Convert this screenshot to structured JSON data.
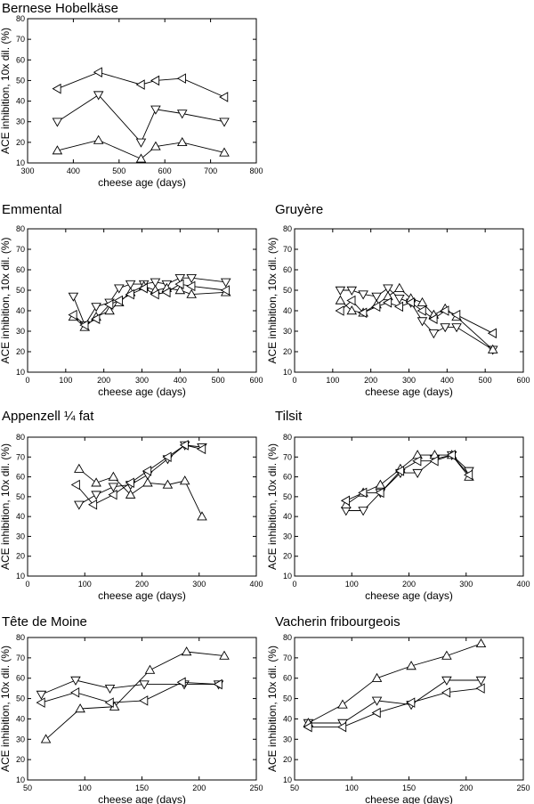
{
  "chart_data": [
    {
      "type": "scatter",
      "title": "Bernese Hobelkäse",
      "xlabel": "cheese age (days)",
      "ylabel": "ACE inhibition, 10x dil. (%)",
      "xlim": [
        300,
        800
      ],
      "ylim": [
        10,
        80
      ],
      "xticks": [
        300,
        400,
        500,
        600,
        700,
        800
      ],
      "yticks": [
        10,
        20,
        30,
        40,
        50,
        60,
        70,
        80
      ],
      "series": [
        {
          "marker": "triangle-left",
          "x": [
            365,
            455,
            548,
            580,
            638,
            730
          ],
          "y": [
            46,
            54,
            48,
            50,
            51,
            42
          ]
        },
        {
          "marker": "triangle-down",
          "x": [
            365,
            455,
            548,
            580,
            638,
            730
          ],
          "y": [
            30,
            43,
            20,
            36,
            34,
            30
          ]
        },
        {
          "marker": "triangle-up",
          "x": [
            365,
            455,
            548,
            580,
            638,
            730
          ],
          "y": [
            16,
            21,
            12,
            18,
            20,
            15
          ]
        }
      ]
    },
    {
      "type": "scatter",
      "title": "Emmental",
      "xlabel": "cheese age (days)",
      "ylabel": "ACE inhibition, 10x dil. (%)",
      "xlim": [
        0,
        600
      ],
      "ylim": [
        10,
        80
      ],
      "xticks": [
        0,
        100,
        200,
        300,
        400,
        500,
        600
      ],
      "yticks": [
        10,
        20,
        30,
        40,
        50,
        60,
        70,
        80
      ],
      "series": [
        {
          "marker": "triangle-down",
          "x": [
            120,
            150,
            180,
            215,
            240,
            270,
            305,
            335,
            365,
            400,
            430,
            520
          ],
          "y": [
            47,
            33,
            42,
            44,
            51,
            53,
            53,
            54,
            53,
            56,
            56,
            54
          ]
        },
        {
          "marker": "triangle-up",
          "x": [
            120,
            150,
            180,
            215,
            240,
            270,
            305,
            335,
            365,
            400,
            430,
            520
          ],
          "y": [
            37,
            32,
            37,
            40,
            44,
            49,
            52,
            50,
            51,
            50,
            48,
            49
          ]
        },
        {
          "marker": "triangle-left",
          "x": [
            120,
            150,
            180,
            215,
            240,
            270,
            305,
            335,
            365,
            400,
            430,
            520
          ],
          "y": [
            38,
            33,
            36,
            43,
            45,
            48,
            51,
            48,
            49,
            53,
            52,
            50
          ]
        }
      ]
    },
    {
      "type": "scatter",
      "title": "Gruyère",
      "xlabel": "cheese age (days)",
      "ylabel": "ACE inhibition, 10x dil. (%)",
      "xlim": [
        0,
        600
      ],
      "ylim": [
        10,
        80
      ],
      "xticks": [
        0,
        100,
        200,
        300,
        400,
        500,
        600
      ],
      "yticks": [
        10,
        20,
        30,
        40,
        50,
        60,
        70,
        80
      ],
      "series": [
        {
          "marker": "triangle-down",
          "x": [
            120,
            150,
            180,
            215,
            245,
            275,
            305,
            335,
            365,
            395,
            425,
            520
          ],
          "y": [
            50,
            50,
            48,
            47,
            51,
            46,
            44,
            35,
            29,
            32,
            32,
            21
          ]
        },
        {
          "marker": "triangle-up",
          "x": [
            120,
            150,
            180,
            215,
            245,
            275,
            305,
            335,
            365,
            395,
            425,
            520
          ],
          "y": [
            45,
            40,
            39,
            43,
            47,
            51,
            46,
            44,
            38,
            41,
            37,
            21
          ]
        },
        {
          "marker": "triangle-left",
          "x": [
            120,
            150,
            180,
            215,
            245,
            275,
            305,
            335,
            365,
            395,
            425,
            520
          ],
          "y": [
            40,
            45,
            39,
            42,
            44,
            42,
            44,
            40,
            36,
            40,
            38,
            29
          ]
        }
      ]
    },
    {
      "type": "scatter",
      "title": "Appenzell ¼ fat",
      "xlabel": "cheese age (days)",
      "ylabel": "ACE inhibition, 10x dil. (%)",
      "xlim": [
        0,
        400
      ],
      "ylim": [
        10,
        80
      ],
      "xticks": [
        0,
        100,
        200,
        300,
        400
      ],
      "yticks": [
        10,
        20,
        30,
        40,
        50,
        60,
        70,
        80
      ],
      "series": [
        {
          "marker": "triangle-down",
          "x": [
            90,
            120,
            150,
            180,
            210,
            245,
            275,
            305
          ],
          "y": [
            46,
            51,
            55,
            56,
            61,
            69,
            76,
            75
          ]
        },
        {
          "marker": "triangle-up",
          "x": [
            90,
            120,
            150,
            180,
            210,
            245,
            275,
            305
          ],
          "y": [
            64,
            57,
            60,
            51,
            57,
            56,
            58,
            40
          ]
        },
        {
          "marker": "triangle-left",
          "x": [
            85,
            115,
            150,
            180,
            210,
            245,
            275,
            305
          ],
          "y": [
            56,
            46,
            51,
            57,
            63,
            70,
            76,
            74
          ]
        }
      ]
    },
    {
      "type": "scatter",
      "title": "Tilsit",
      "xlabel": "cheese age (days)",
      "ylabel": "ACE inhibition, 10x dil. (%)",
      "xlim": [
        0,
        400
      ],
      "ylim": [
        10,
        80
      ],
      "xticks": [
        0,
        100,
        200,
        300,
        400
      ],
      "yticks": [
        10,
        20,
        30,
        40,
        50,
        60,
        70,
        80
      ],
      "series": [
        {
          "marker": "triangle-down",
          "x": [
            90,
            120,
            150,
            185,
            215,
            245,
            275,
            305
          ],
          "y": [
            43,
            43,
            52,
            62,
            62,
            69,
            71,
            63
          ]
        },
        {
          "marker": "triangle-up",
          "x": [
            90,
            120,
            150,
            185,
            215,
            245,
            275,
            305
          ],
          "y": [
            46,
            52,
            56,
            64,
            71,
            71,
            71,
            60
          ]
        },
        {
          "marker": "triangle-left",
          "x": [
            90,
            120,
            150,
            185,
            215,
            245,
            275,
            305
          ],
          "y": [
            48,
            52,
            52,
            63,
            68,
            68,
            71,
            61
          ]
        }
      ]
    },
    {
      "type": "scatter",
      "title": "Tête de Moine",
      "xlabel": "cheese age (days)",
      "ylabel": "ACE inhibition, 10x dil. (%)",
      "xlim": [
        50,
        250
      ],
      "ylim": [
        10,
        80
      ],
      "xticks": [
        50,
        100,
        150,
        200,
        250
      ],
      "yticks": [
        10,
        20,
        30,
        40,
        50,
        60,
        70,
        80
      ],
      "series": [
        {
          "marker": "triangle-down",
          "x": [
            62,
            92,
            122,
            152,
            187,
            217
          ],
          "y": [
            52,
            59,
            55,
            57,
            57,
            57
          ]
        },
        {
          "marker": "triangle-up",
          "x": [
            66,
            96,
            126,
            157,
            189,
            222
          ],
          "y": [
            30,
            45,
            46,
            64,
            73,
            71
          ]
        },
        {
          "marker": "triangle-left",
          "x": [
            62,
            92,
            122,
            152,
            185,
            217
          ],
          "y": [
            48,
            53,
            48,
            49,
            58,
            57
          ]
        }
      ]
    },
    {
      "type": "scatter",
      "title": "Vacherin fribourgeois",
      "xlabel": "cheese age (days)",
      "ylabel": "ACE inhibition, 10x dil. (%)",
      "xlim": [
        50,
        250
      ],
      "ylim": [
        10,
        80
      ],
      "xticks": [
        50,
        100,
        150,
        200,
        250
      ],
      "yticks": [
        10,
        20,
        30,
        40,
        50,
        60,
        70,
        80
      ],
      "series": [
        {
          "marker": "triangle-down",
          "x": [
            62,
            92,
            122,
            152,
            183,
            213
          ],
          "y": [
            38,
            38,
            49,
            47,
            59,
            59
          ]
        },
        {
          "marker": "triangle-up",
          "x": [
            62,
            92,
            122,
            152,
            183,
            213
          ],
          "y": [
            38,
            47,
            60,
            66,
            71,
            77
          ]
        },
        {
          "marker": "triangle-left",
          "x": [
            62,
            92,
            122,
            152,
            183,
            213
          ],
          "y": [
            36,
            36,
            43,
            48,
            53,
            55
          ]
        }
      ]
    }
  ]
}
